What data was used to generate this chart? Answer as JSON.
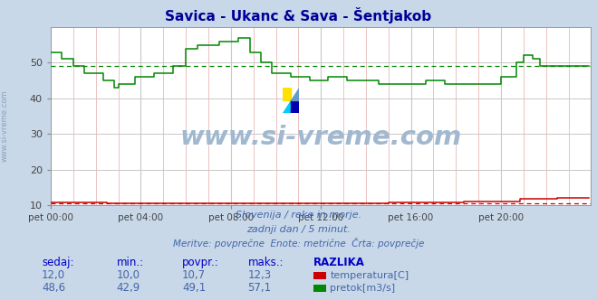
{
  "title": "Savica - Ukanc & Sava - Šentjakob",
  "title_color": "#000099",
  "bg_color": "#c8d8e8",
  "plot_bg_color": "#ffffff",
  "grid_color_major": "#c8c8c8",
  "grid_color_minor": "#e8b8b8",
  "xlim": [
    0,
    288
  ],
  "ylim": [
    10,
    60
  ],
  "yticks": [
    10,
    20,
    30,
    40,
    50
  ],
  "xtick_labels": [
    "pet 00:00",
    "pet 04:00",
    "pet 08:00",
    "pet 12:00",
    "pet 16:00",
    "pet 20:00"
  ],
  "xtick_positions": [
    0,
    48,
    96,
    144,
    192,
    240
  ],
  "temp_color": "#cc0000",
  "flow_color": "#008800",
  "avg_temp": 10.7,
  "avg_flow": 49.1,
  "subtitle1": "Slovenija / reke in morje.",
  "subtitle2": "zadnji dan / 5 minut.",
  "subtitle3": "Meritve: povprečne  Enote: metrične  Črta: povprečje",
  "subtitle_color": "#4466aa",
  "label_color": "#0000cc",
  "table_header": [
    "sedaj:",
    "min.:",
    "povpr.:",
    "maks.:",
    "RAZLIKA"
  ],
  "table_temp": [
    "12,0",
    "10,0",
    "10,7",
    "12,3"
  ],
  "table_flow": [
    "48,6",
    "42,9",
    "49,1",
    "57,1"
  ],
  "legend_temp": "temperatura[C]",
  "legend_flow": "pretok[m3/s]",
  "watermark": "www.si-vreme.com",
  "watermark_color": "#a0b8d0",
  "left_label_color": "#8899bb"
}
